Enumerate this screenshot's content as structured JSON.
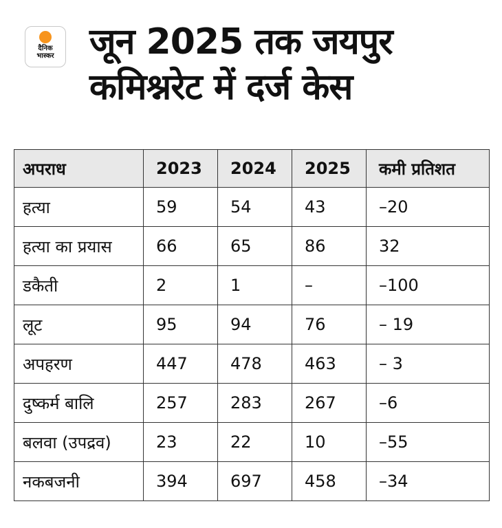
{
  "logo": {
    "line1": "दैनिक",
    "line2": "भास्कर"
  },
  "title": "जून 2025 तक जयपुर कमिश्नरेट में दर्ज केस",
  "table": {
    "headers": [
      "अपराध",
      "2023",
      "2024",
      "2025",
      "कमी प्रतिशत"
    ],
    "rows": [
      [
        "हत्या",
        "59",
        "54",
        "43",
        "–20"
      ],
      [
        "हत्या का प्रयास",
        "66",
        "65",
        "86",
        "32"
      ],
      [
        "डकैती",
        "2",
        "1",
        "–",
        "–100"
      ],
      [
        "लूट",
        "95",
        "94",
        "76",
        "– 19"
      ],
      [
        "अपहरण",
        "447",
        "478",
        "463",
        "– 3"
      ],
      [
        "दुष्कर्म बालि",
        "257",
        "283",
        "267",
        "–6"
      ],
      [
        "बलवा (उपद्रव)",
        "23",
        "22",
        "10",
        "–55"
      ],
      [
        "नकबजनी",
        "394",
        "697",
        "458",
        "–34"
      ]
    ]
  }
}
